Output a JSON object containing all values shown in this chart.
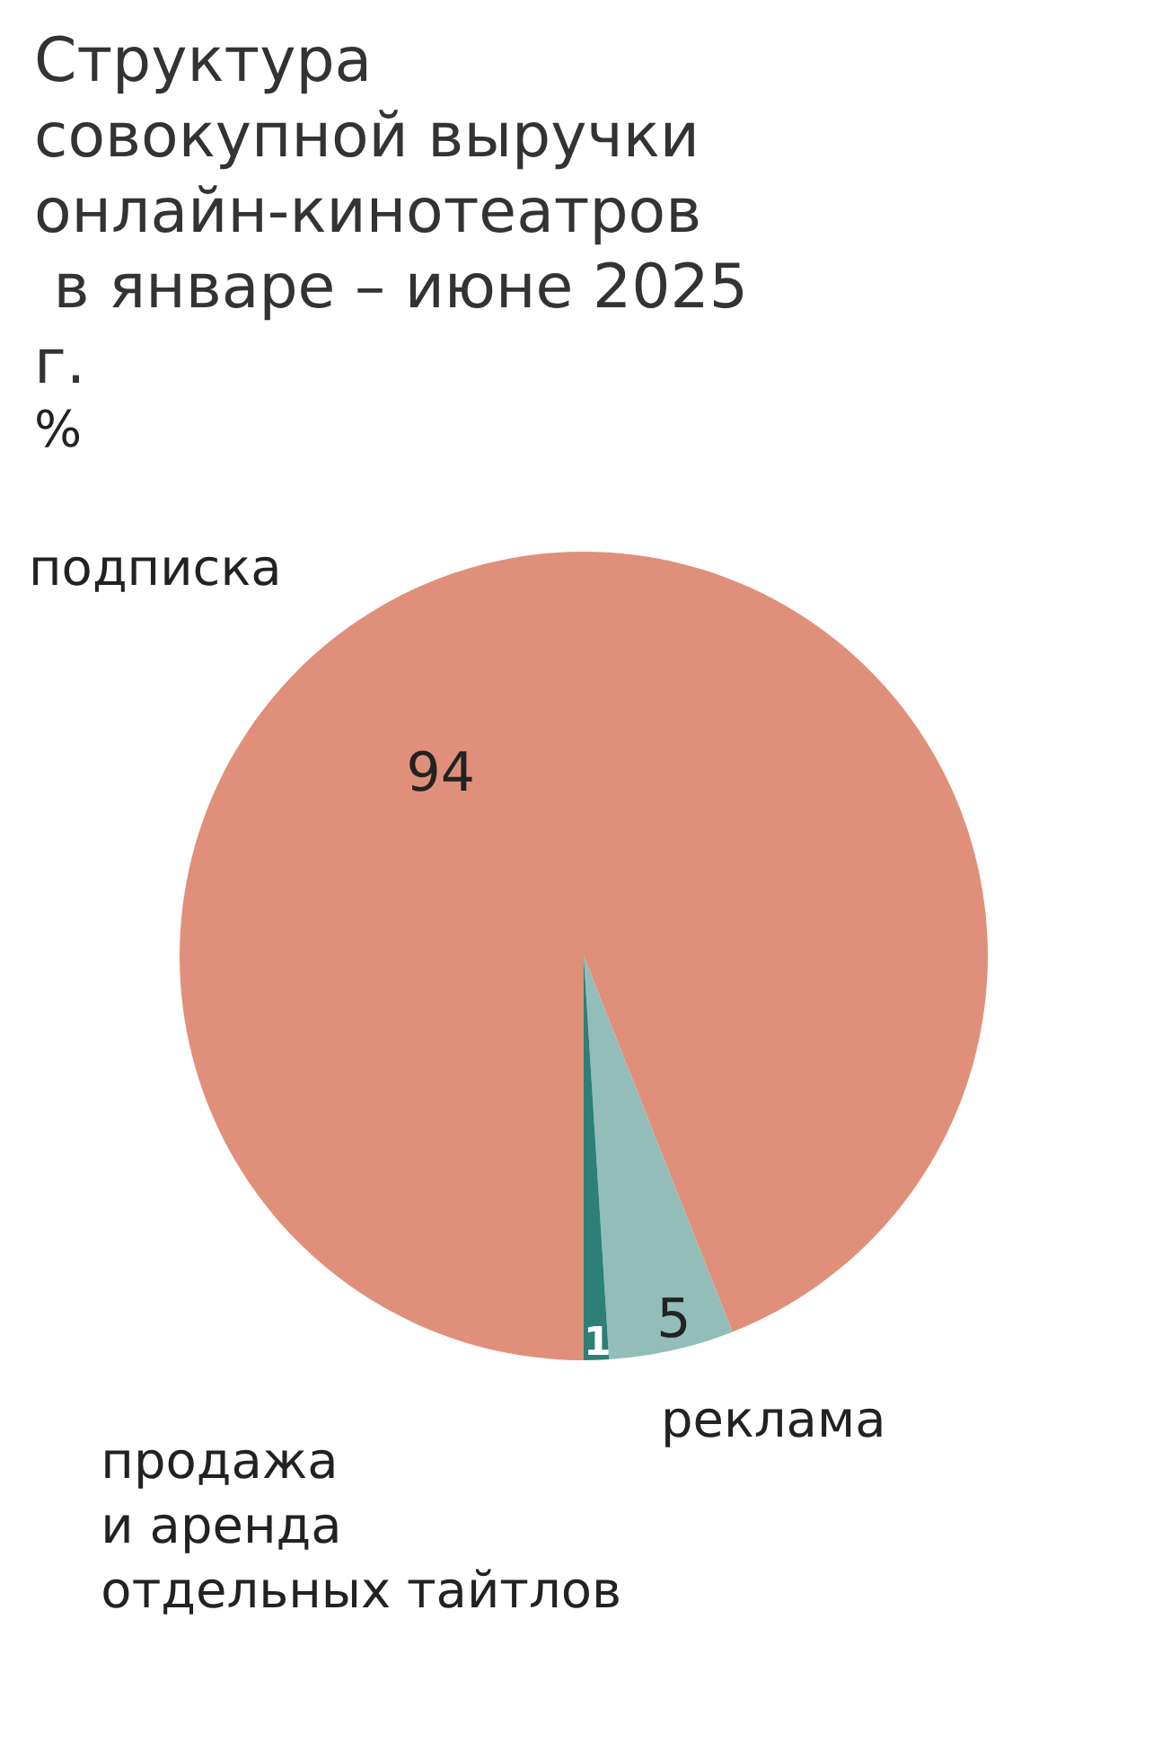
{
  "chart_data": {
    "type": "pie",
    "title": "Структура совокупной выручки онлайн-кинотеатров в январе – июне 2025 г.",
    "subtitle": "%",
    "categories": [
      "подписка",
      "реклама",
      "продажа и аренда отдельных тайтлов"
    ],
    "values": [
      94,
      5,
      1
    ],
    "colors": [
      "#e0907a",
      "#93bdb9",
      "#2e7f77"
    ],
    "data_labels": true,
    "legend": false
  }
}
